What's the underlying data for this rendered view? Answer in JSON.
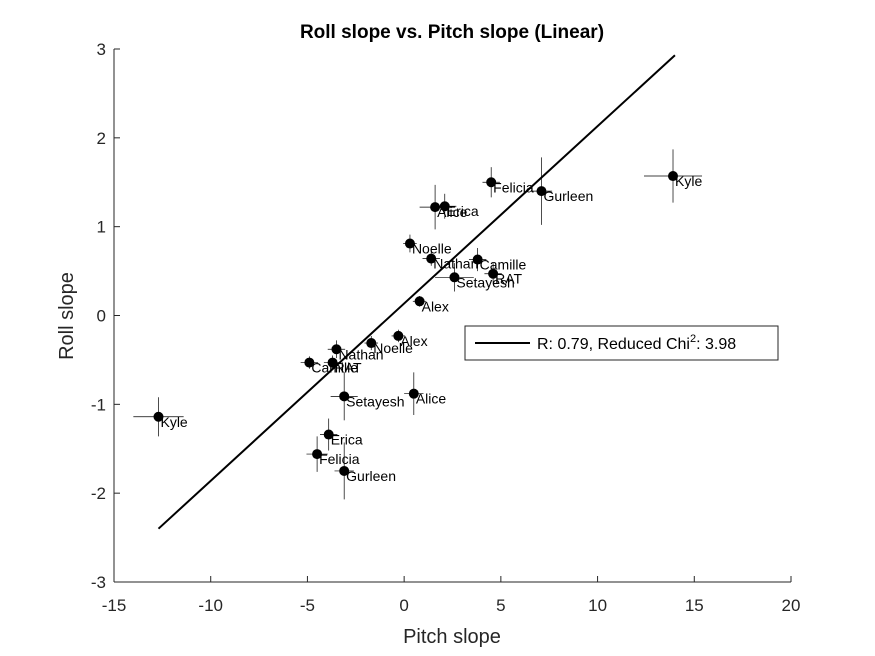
{
  "chart_data": {
    "type": "scatter",
    "title": "Roll slope vs. Pitch slope (Linear)",
    "xlabel": "Pitch slope",
    "ylabel": "Roll slope",
    "xlim": [
      -15,
      20
    ],
    "ylim": [
      -3,
      3
    ],
    "xticks": [
      -15,
      -10,
      -5,
      0,
      5,
      10,
      15,
      20
    ],
    "yticks": [
      -3,
      -2,
      -1,
      0,
      1,
      2,
      3
    ],
    "xtick_labels": [
      "-15",
      "-10",
      "-5",
      "0",
      "5",
      "10",
      "15",
      "20"
    ],
    "ytick_labels": [
      "-3",
      "-2",
      "-1",
      "0",
      "1",
      "2",
      "3"
    ],
    "grid": false,
    "legend": {
      "placement": "right",
      "prefix": "R: 0.79, Reduced Chi",
      "superscript": "2",
      "suffix": ": 3.98"
    },
    "fit_line": {
      "x": [
        -12.7,
        14.0
      ],
      "y": [
        -2.4,
        2.93
      ]
    },
    "points": [
      {
        "label": "Kyle",
        "x": 13.9,
        "y": 1.57,
        "xerr": 1.5,
        "yerr": 0.3
      },
      {
        "label": "Felicia",
        "x": 4.5,
        "y": 1.5,
        "xerr": 0.45,
        "yerr": 0.17
      },
      {
        "label": "Gurleen",
        "x": 7.1,
        "y": 1.4,
        "xerr": 0.55,
        "yerr": 0.38
      },
      {
        "label": "Erica",
        "x": 2.1,
        "y": 1.23,
        "xerr": 0.6,
        "yerr": 0.14
      },
      {
        "label": "Alice",
        "x": 1.6,
        "y": 1.22,
        "xerr": 0.8,
        "yerr": 0.25
      },
      {
        "label": "Noelle",
        "x": 0.3,
        "y": 0.81,
        "xerr": 0.35,
        "yerr": 0.1
      },
      {
        "label": "Nathan",
        "x": 1.4,
        "y": 0.64,
        "xerr": 0.45,
        "yerr": 0.08
      },
      {
        "label": "Camille",
        "x": 3.8,
        "y": 0.63,
        "xerr": 0.45,
        "yerr": 0.13
      },
      {
        "label": "RAT",
        "x": 4.6,
        "y": 0.47,
        "xerr": 0.45,
        "yerr": 0.12
      },
      {
        "label": "Setayesh",
        "x": 2.6,
        "y": 0.43,
        "xerr": 1.0,
        "yerr": 0.16
      },
      {
        "label": "Alex",
        "x": 0.8,
        "y": 0.16,
        "xerr": 0.35,
        "yerr": 0.06
      },
      {
        "label": "Alex",
        "x": -0.3,
        "y": -0.23,
        "xerr": 0.35,
        "yerr": 0.07
      },
      {
        "label": "Noelle",
        "x": -1.7,
        "y": -0.31,
        "xerr": 0.35,
        "yerr": 0.08
      },
      {
        "label": "Nathan",
        "x": -3.5,
        "y": -0.38,
        "xerr": 0.45,
        "yerr": 0.1
      },
      {
        "label": "RAT",
        "x": -3.7,
        "y": -0.53,
        "xerr": 0.45,
        "yerr": 0.08
      },
      {
        "label": "Camille",
        "x": -4.9,
        "y": -0.53,
        "xerr": 0.45,
        "yerr": 0.07
      },
      {
        "label": "Alice",
        "x": 0.5,
        "y": -0.88,
        "xerr": 0.5,
        "yerr": 0.24
      },
      {
        "label": "Setayesh",
        "x": -3.1,
        "y": -0.91,
        "xerr": 0.7,
        "yerr": 0.27
      },
      {
        "label": "Erica",
        "x": -3.9,
        "y": -1.34,
        "xerr": 0.45,
        "yerr": 0.18
      },
      {
        "label": "Felicia",
        "x": -4.5,
        "y": -1.56,
        "xerr": 0.55,
        "yerr": 0.2
      },
      {
        "label": "Gurleen",
        "x": -3.1,
        "y": -1.75,
        "xerr": 0.5,
        "yerr": 0.32
      },
      {
        "label": "Kyle",
        "x": -12.7,
        "y": -1.14,
        "xerr": 1.3,
        "yerr": 0.22
      }
    ]
  }
}
